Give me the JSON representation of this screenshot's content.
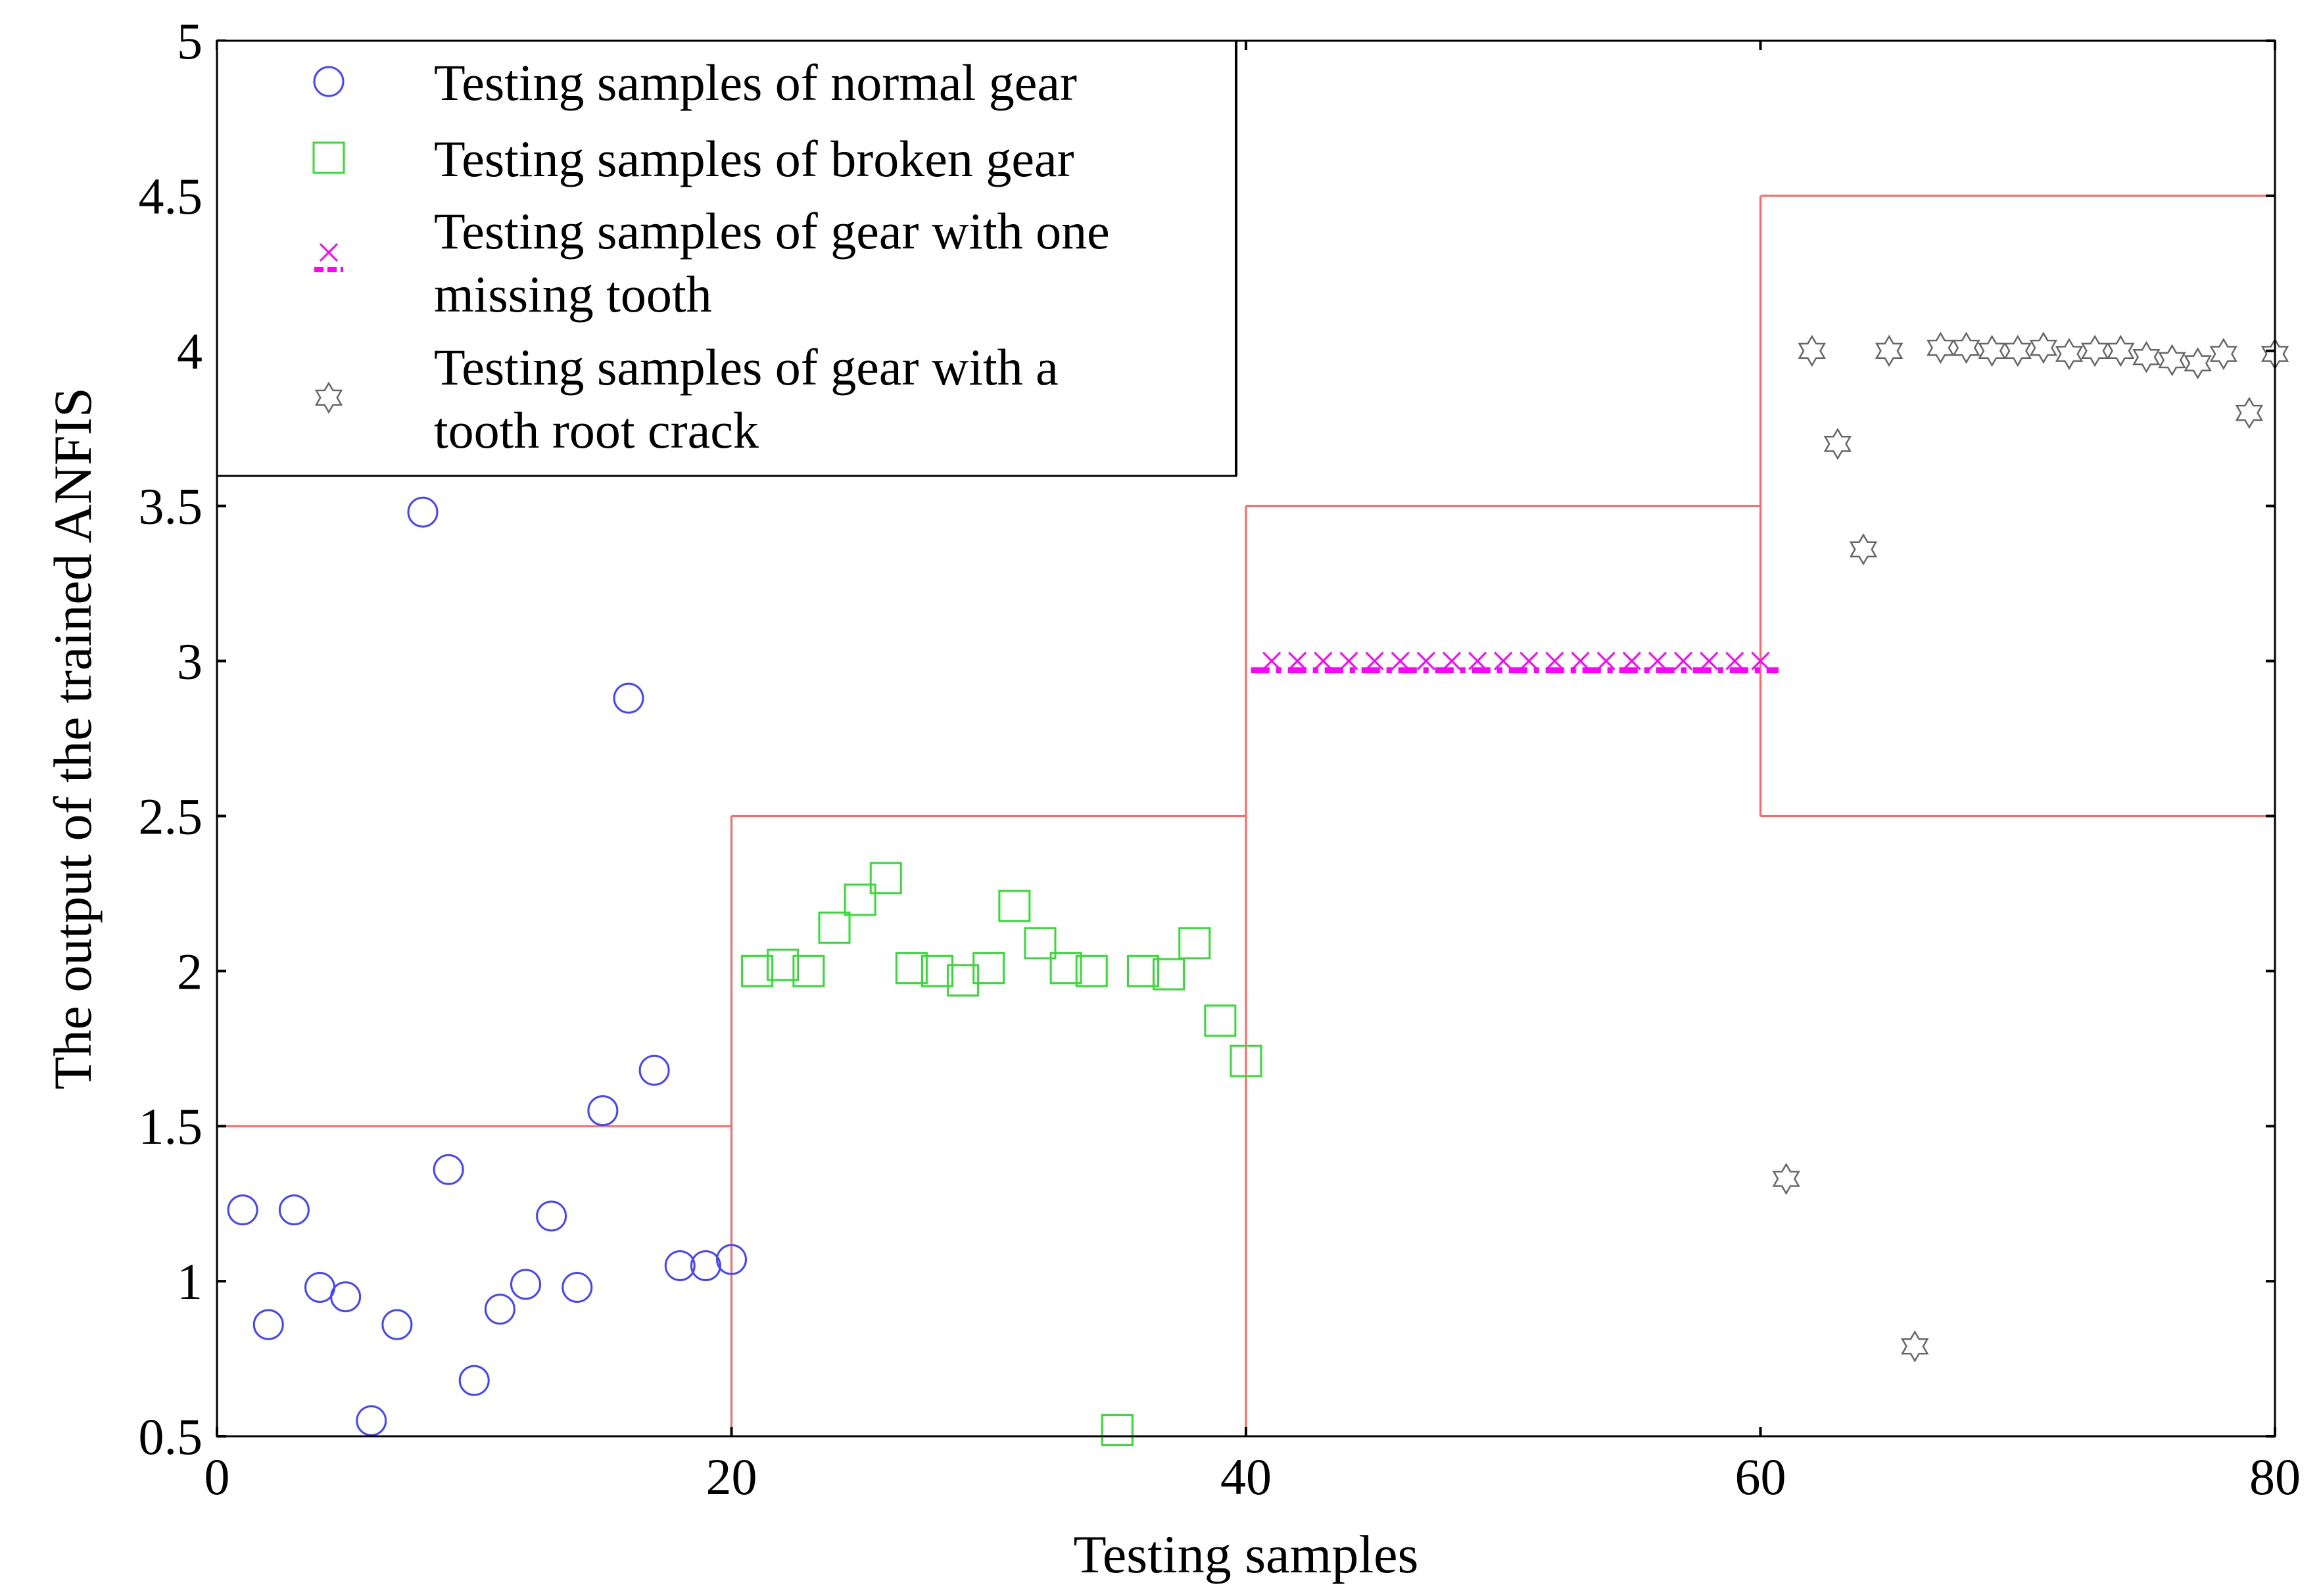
{
  "chart_data": {
    "type": "scatter",
    "xlabel": "Testing samples",
    "ylabel": "The output of the trained ANFIS",
    "xlim": [
      0,
      80
    ],
    "ylim": [
      0.5,
      5
    ],
    "xticks": [
      "0",
      "20",
      "40",
      "60",
      "80"
    ],
    "yticks": [
      "0.5",
      "1",
      "1.5",
      "2",
      "2.5",
      "3",
      "3.5",
      "4",
      "4.5",
      "5"
    ],
    "grid": false,
    "legend_position": "top-left",
    "series": [
      {
        "name": "Testing samples of normal gear",
        "marker": "circle",
        "color": "#4444ff",
        "x": [
          1,
          2,
          3,
          4,
          5,
          6,
          7,
          8,
          9,
          10,
          11,
          12,
          13,
          14,
          15,
          16,
          17,
          18,
          19,
          20
        ],
        "y": [
          1.23,
          0.86,
          1.23,
          0.98,
          0.95,
          0.55,
          0.86,
          3.48,
          1.36,
          0.68,
          0.91,
          0.99,
          1.21,
          0.98,
          1.55,
          2.88,
          1.68,
          1.05,
          1.05,
          1.07
        ]
      },
      {
        "name": "Testing samples of broken gear",
        "marker": "square",
        "color": "#33dd33",
        "x": [
          21,
          22,
          23,
          24,
          25,
          26,
          27,
          28,
          29,
          30,
          31,
          32,
          33,
          34,
          35,
          36,
          37,
          38,
          39,
          40
        ],
        "y": [
          2.0,
          2.02,
          2.0,
          2.14,
          2.23,
          2.3,
          2.01,
          2.0,
          1.97,
          2.01,
          2.21,
          2.09,
          2.01,
          2.0,
          0.52,
          2.0,
          1.99,
          2.09,
          1.84,
          1.71
        ]
      },
      {
        "name": "Testing samples of gear with one missing tooth",
        "marker": "x",
        "color": "#ff00ff",
        "x": [
          41,
          42,
          43,
          44,
          45,
          46,
          47,
          48,
          49,
          50,
          51,
          52,
          53,
          54,
          55,
          56,
          57,
          58,
          59,
          60
        ],
        "y": [
          3.0,
          3.0,
          3.0,
          3.0,
          3.0,
          3.0,
          3.0,
          3.0,
          3.0,
          3.0,
          3.0,
          3.0,
          3.0,
          3.0,
          3.0,
          3.0,
          3.0,
          3.0,
          3.0,
          3.0
        ]
      },
      {
        "name": "Testing samples of gear with a tooth root crack",
        "marker": "hexagram",
        "color": "#666666",
        "x": [
          61,
          62,
          63,
          64,
          65,
          66,
          67,
          68,
          69,
          70,
          71,
          72,
          73,
          74,
          75,
          76,
          77,
          78,
          79,
          80
        ],
        "y": [
          1.33,
          4.0,
          3.7,
          3.36,
          4.0,
          0.79,
          4.01,
          4.01,
          4.0,
          4.0,
          4.01,
          3.99,
          4.0,
          4.0,
          3.98,
          3.97,
          3.96,
          3.99,
          3.8,
          3.99
        ]
      }
    ],
    "reference_line": {
      "color": "#ff6666",
      "steps": [
        {
          "x": [
            0,
            20
          ],
          "lower": 0.5,
          "upper": 1.5
        },
        {
          "x": [
            20,
            40
          ],
          "lower": 0.5,
          "upper": 2.5
        },
        {
          "x": [
            40,
            60
          ],
          "lower": 0.5,
          "upper": 3.5
        },
        {
          "x": [
            60,
            80
          ],
          "lower": 2.5,
          "upper": 4.5
        }
      ]
    },
    "dashed_mean": {
      "color": "#ff00ff",
      "x": [
        40.2,
        60.7
      ],
      "y": 2.97
    }
  },
  "legend": {
    "items": [
      {
        "lines": [
          "Testing samples of normal gear"
        ],
        "marker": "circle",
        "color": "#4444ff"
      },
      {
        "lines": [
          "Testing samples of broken gear"
        ],
        "marker": "square",
        "color": "#33dd33"
      },
      {
        "lines": [
          "Testing samples of gear with one",
          "missing tooth"
        ],
        "marker": "x-dash",
        "color": "#ff00ff"
      },
      {
        "lines": [
          "Testing samples of gear with a",
          "tooth root crack"
        ],
        "marker": "hexagram",
        "color": "#666666"
      }
    ]
  }
}
